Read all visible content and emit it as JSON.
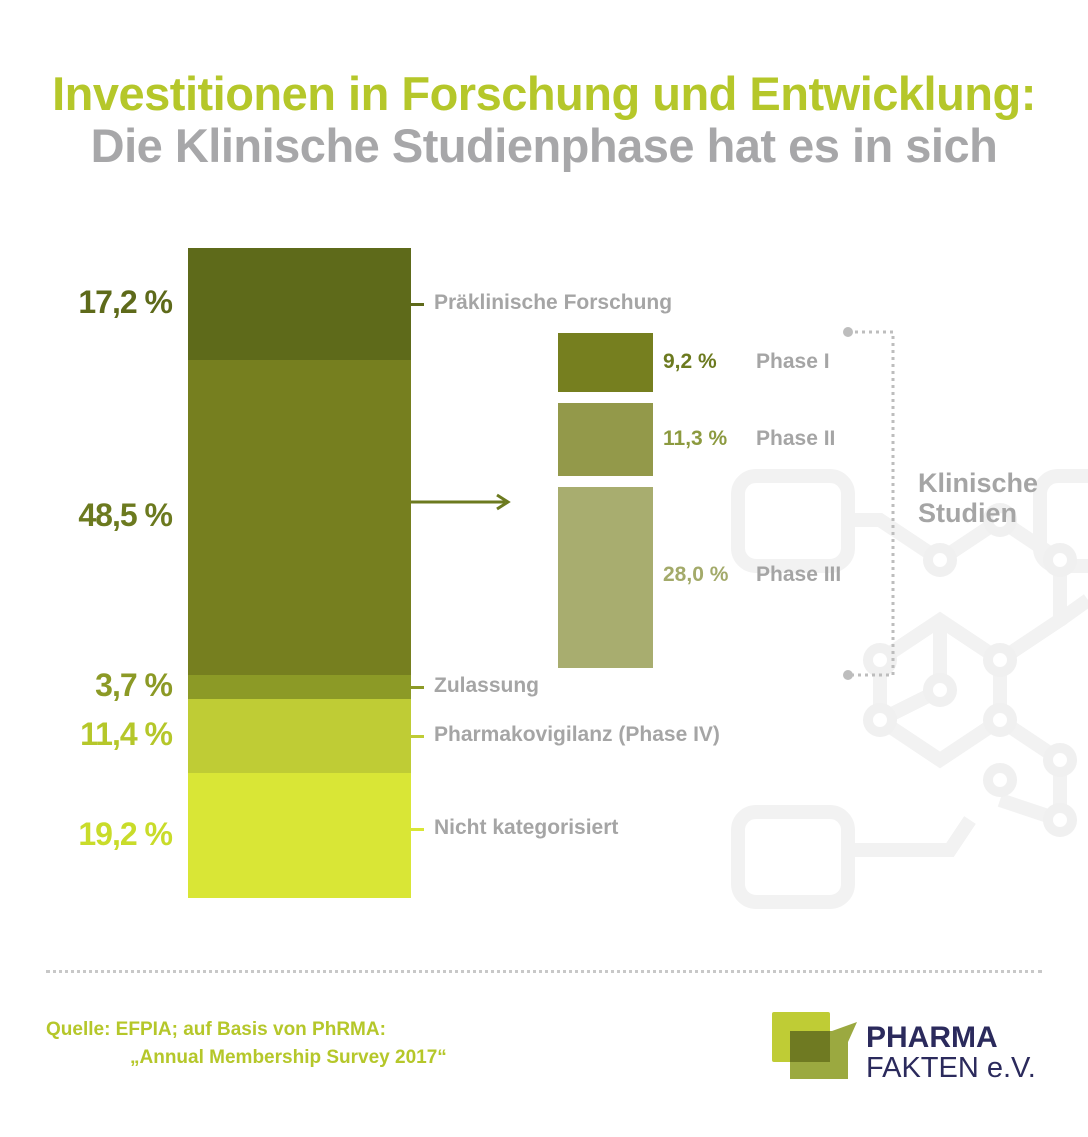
{
  "title": {
    "line1": "Investitionen in Forschung und Entwicklung:",
    "line2": "Die Klinische Studienphase hat es in sich"
  },
  "chart_data": {
    "type": "stacked-bar",
    "main": {
      "segments": [
        {
          "label": "Präklinische Forschung",
          "value": 17.2,
          "value_label": "17,2 %",
          "color": "#5e6a1a",
          "label_color": "#5e6a1a"
        },
        {
          "label": "",
          "value": 48.5,
          "value_label": "48,5 %",
          "color": "#767f1f",
          "label_color": "#6c7a1f"
        },
        {
          "label": "Zulassung",
          "value": 3.7,
          "value_label": "3,7 %",
          "color": "#8c9a26",
          "label_color": "#8c9a26"
        },
        {
          "label": "Pharmakovigilanz (Phase IV)",
          "value": 11.4,
          "value_label": "11,4 %",
          "color": "#bfcc35",
          "label_color": "#b5c72a"
        },
        {
          "label": "Nicht kategorisiert",
          "value": 19.2,
          "value_label": "19,2 %",
          "color": "#d9e636",
          "label_color": "#c9dc2a"
        }
      ]
    },
    "breakdown": {
      "group_label_line1": "Klinische",
      "group_label_line2": "Studien",
      "segments": [
        {
          "label": "Phase I",
          "value": 9.2,
          "value_label": "9,2 %",
          "color": "#767f1f",
          "label_color": "#6c7a1f"
        },
        {
          "label": "Phase II",
          "value": 11.3,
          "value_label": "11,3 %",
          "color": "#93994a",
          "label_color": "#8c9a3f"
        },
        {
          "label": "Phase III",
          "value": 28.0,
          "value_label": "28,0 %",
          "color": "#a8ad6f",
          "label_color": "#a3aa6a"
        }
      ]
    }
  },
  "source": {
    "line1": "Quelle: EFPIA; auf Basis von PhRMA:",
    "line2": "„Annual Membership Survey 2017“"
  },
  "logo": {
    "line1": "PHARMA",
    "line2": "FAKTEN e.V."
  }
}
